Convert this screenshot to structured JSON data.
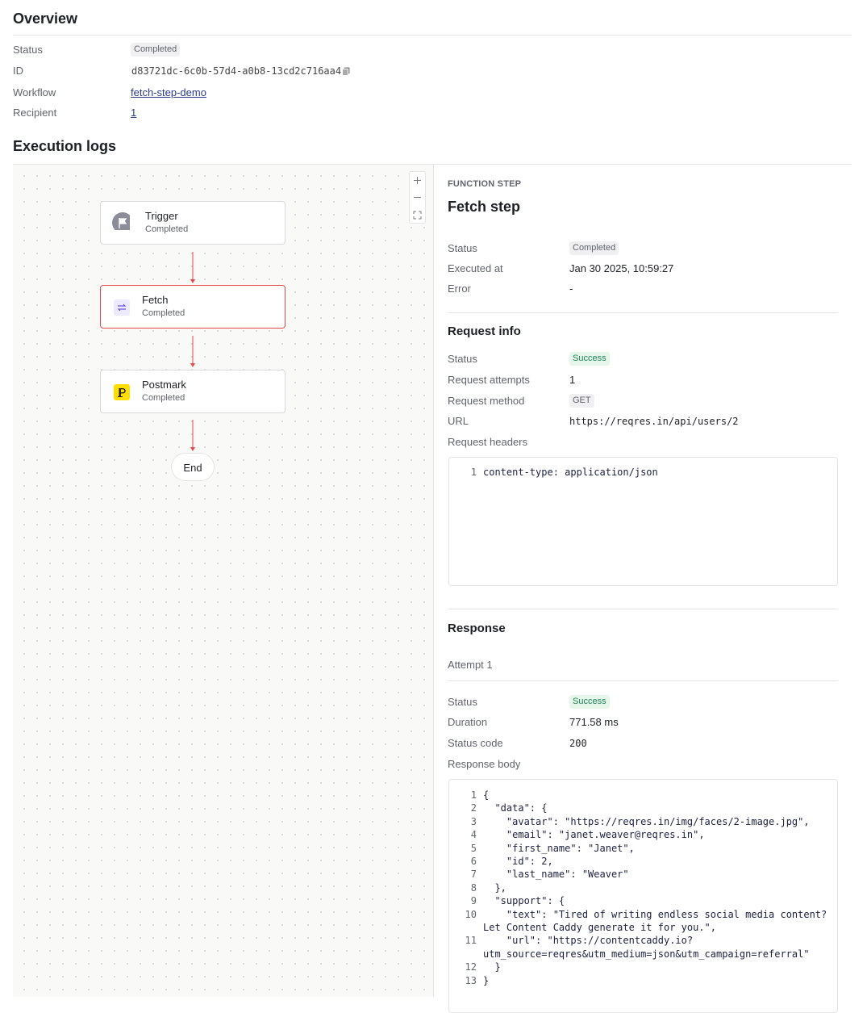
{
  "overview": {
    "title": "Overview",
    "status": {
      "label": "Status",
      "value": "Completed"
    },
    "id": {
      "label": "ID",
      "value": "d83721dc-6c0b-57d4-a0b8-13cd2c716aa4"
    },
    "workflow": {
      "label": "Workflow",
      "value": "fetch-step-demo"
    },
    "recipient": {
      "label": "Recipient",
      "value": "1"
    }
  },
  "execution_logs": {
    "title": "Execution logs",
    "nodes": [
      {
        "title": "Trigger",
        "status": "Completed"
      },
      {
        "title": "Fetch",
        "status": "Completed"
      },
      {
        "title": "Postmark",
        "status": "Completed"
      }
    ],
    "end": "End"
  },
  "step": {
    "kicker": "FUNCTION STEP",
    "title": "Fetch step",
    "status": {
      "label": "Status",
      "value": "Completed"
    },
    "executed_at": {
      "label": "Executed at",
      "value": "Jan 30 2025, 10:59:27"
    },
    "error": {
      "label": "Error",
      "value": "-"
    }
  },
  "request_info": {
    "title": "Request info",
    "status": {
      "label": "Status",
      "value": "Success"
    },
    "attempts": {
      "label": "Request attempts",
      "value": "1"
    },
    "method": {
      "label": "Request method",
      "value": "GET"
    },
    "url": {
      "label": "URL",
      "value": "https://reqres.in/api/users/2"
    },
    "headers": {
      "label": "Request headers",
      "lines": [
        [
          "1",
          "content-type: application/json"
        ]
      ]
    }
  },
  "response": {
    "title": "Response",
    "attempt": "Attempt 1",
    "status": {
      "label": "Status",
      "value": "Success"
    },
    "duration": {
      "label": "Duration",
      "value": "771.58 ms"
    },
    "status_code": {
      "label": "Status code",
      "value": "200"
    },
    "body": {
      "label": "Response body",
      "lines": [
        [
          "1",
          "{"
        ],
        [
          "2",
          "  \"data\": {"
        ],
        [
          "3",
          "    \"avatar\": \"https://reqres.in/img/faces/2-image.jpg\","
        ],
        [
          "4",
          "    \"email\": \"janet.weaver@reqres.in\","
        ],
        [
          "5",
          "    \"first_name\": \"Janet\","
        ],
        [
          "6",
          "    \"id\": 2,"
        ],
        [
          "7",
          "    \"last_name\": \"Weaver\""
        ],
        [
          "8",
          "  },"
        ],
        [
          "9",
          "  \"support\": {"
        ],
        [
          "10",
          "    \"text\": \"Tired of writing endless social media content? Let Content Caddy generate it for you.\","
        ],
        [
          "11",
          "    \"url\": \"https://contentcaddy.io?utm_source=reqres&utm_medium=json&utm_campaign=referral\""
        ],
        [
          "12",
          "  }"
        ],
        [
          "13",
          "}"
        ]
      ]
    }
  }
}
